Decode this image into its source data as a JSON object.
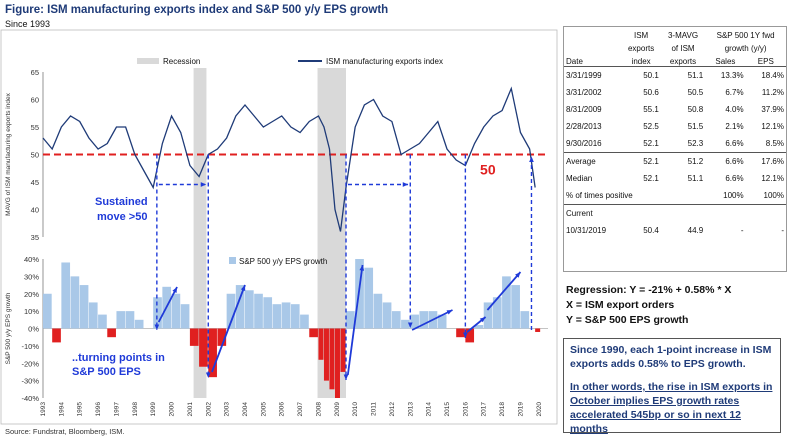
{
  "figure": {
    "title": "Figure: ISM manufacturing exports index and S&P 500 y/y EPS growth",
    "subtitle": "Since 1993",
    "source": "Source: Fundstrat, Bloomberg, ISM."
  },
  "colors": {
    "ism_line": "#1f3b78",
    "eps_pos": "#a9c8e8",
    "eps_neg": "#e02020",
    "recession": "#d9d9d9",
    "threshold": "#e02020",
    "annotation": "#1f3ad8"
  },
  "chart_data": [
    {
      "type": "line",
      "title": "",
      "legend": [
        "Recession",
        "ISM manufacturing exports index"
      ],
      "legend_position": "top",
      "ylabel": "MAVG of ISM manufacturing exports index",
      "ylim": [
        35,
        65
      ],
      "yticks": [
        35,
        40,
        45,
        50,
        55,
        60,
        65
      ],
      "threshold": {
        "value": 50,
        "label": "50"
      },
      "recessions": [
        [
          2001.2,
          2001.9
        ],
        [
          2007.95,
          2009.5
        ]
      ],
      "series": [
        {
          "name": "ISM manufacturing exports index",
          "x": [
            1993.0,
            1993.5,
            1994.0,
            1994.5,
            1995.0,
            1995.5,
            1996.0,
            1996.5,
            1997.0,
            1997.5,
            1998.0,
            1998.5,
            1999.0,
            1999.5,
            2000.0,
            2000.5,
            2001.0,
            2001.5,
            2002.0,
            2002.5,
            2003.0,
            2003.5,
            2004.0,
            2004.5,
            2005.0,
            2005.5,
            2006.0,
            2006.5,
            2007.0,
            2007.5,
            2008.0,
            2008.3,
            2008.6,
            2008.9,
            2009.2,
            2009.5,
            2010.0,
            2010.5,
            2011.0,
            2011.5,
            2012.0,
            2012.5,
            2013.0,
            2013.5,
            2014.0,
            2014.5,
            2015.0,
            2015.5,
            2016.0,
            2016.5,
            2017.0,
            2017.5,
            2018.0,
            2018.5,
            2019.0,
            2019.5,
            2019.8
          ],
          "values": [
            53,
            51,
            55,
            57,
            56,
            53,
            51,
            52,
            55,
            55,
            50,
            47,
            44,
            52,
            57,
            54,
            48,
            46,
            50,
            51,
            53,
            57,
            59,
            57,
            55,
            56,
            57,
            55,
            54,
            56,
            57,
            55,
            51,
            40,
            36,
            44,
            55,
            59,
            60,
            57,
            56,
            50,
            51,
            52,
            54,
            56,
            51,
            49,
            48,
            52,
            55,
            57,
            58,
            62,
            54,
            51,
            44
          ]
        }
      ],
      "annotations": [
        "Sustained move >50"
      ]
    },
    {
      "type": "bar",
      "title": "",
      "legend": [
        "S&P 500 y/y EPS growth"
      ],
      "legend_position": "top",
      "ylabel": "S&P 500 y/y EPS growth",
      "ylim": [
        -40,
        40
      ],
      "yticks": [
        "40%",
        "30%",
        "20%",
        "10%",
        "0%",
        "-10%",
        "-20%",
        "-30%",
        "-40%"
      ],
      "x_tick_labels": [
        "1993",
        "1994",
        "1995",
        "1996",
        "1997",
        "1998",
        "1999",
        "2000",
        "2001",
        "2002",
        "2003",
        "2004",
        "2005",
        "2006",
        "2007",
        "2008",
        "2009",
        "2010",
        "2011",
        "2012",
        "2013",
        "2014",
        "2015",
        "2016",
        "2017",
        "2018",
        "2019",
        "2020"
      ],
      "series": [
        {
          "name": "S&P 500 y/y EPS growth",
          "x": [
            1993.0,
            1993.5,
            1994.0,
            1994.5,
            1995.0,
            1995.5,
            1996.0,
            1996.5,
            1997.0,
            1997.5,
            1998.0,
            1998.5,
            1999.0,
            1999.5,
            2000.0,
            2000.5,
            2001.0,
            2001.5,
            2002.0,
            2002.5,
            2003.0,
            2003.5,
            2004.0,
            2004.5,
            2005.0,
            2005.5,
            2006.0,
            2006.5,
            2007.0,
            2007.5,
            2008.0,
            2008.3,
            2008.6,
            2008.9,
            2009.2,
            2009.5,
            2010.0,
            2010.5,
            2011.0,
            2011.5,
            2012.0,
            2012.5,
            2013.0,
            2013.5,
            2014.0,
            2014.5,
            2015.0,
            2015.5,
            2016.0,
            2016.5,
            2017.0,
            2017.5,
            2018.0,
            2018.5,
            2019.0,
            2019.5,
            2019.8
          ],
          "values": [
            20,
            -8,
            38,
            30,
            25,
            15,
            8,
            -5,
            10,
            10,
            5,
            0,
            18,
            24,
            20,
            14,
            -10,
            -22,
            -28,
            -10,
            20,
            25,
            22,
            20,
            18,
            14,
            15,
            14,
            8,
            -5,
            -18,
            -30,
            -35,
            -40,
            -25,
            10,
            40,
            35,
            20,
            15,
            10,
            5,
            8,
            10,
            10,
            8,
            0,
            -5,
            -8,
            2,
            15,
            18,
            30,
            25,
            10,
            0,
            -2
          ]
        }
      ],
      "annotations": [
        "..turning points in S&P 500 EPS"
      ]
    }
  ],
  "table": {
    "headers": [
      [
        "",
        "ISM",
        "3-MAVG",
        "S&P 500 1Y fwd",
        ""
      ],
      [
        "",
        "exports",
        "of ISM",
        "growth (y/y)",
        ""
      ],
      [
        "Date",
        "index",
        "exports",
        "Sales",
        "EPS"
      ]
    ],
    "rows": [
      [
        "3/31/1999",
        "50.1",
        "51.1",
        "13.3%",
        "18.4%"
      ],
      [
        "3/31/2002",
        "50.6",
        "50.5",
        "6.7%",
        "11.2%"
      ],
      [
        "8/31/2009",
        "55.1",
        "50.8",
        "4.0%",
        "37.9%"
      ],
      [
        "2/28/2013",
        "52.5",
        "51.5",
        "2.1%",
        "12.1%"
      ],
      [
        "9/30/2016",
        "52.1",
        "52.3",
        "6.6%",
        "8.5%"
      ]
    ],
    "summary": [
      [
        "Average",
        "52.1",
        "51.2",
        "6.6%",
        "17.6%"
      ],
      [
        "Median",
        "52.1",
        "51.1",
        "6.6%",
        "12.1%"
      ],
      [
        "% of times positive",
        "",
        "",
        "100%",
        "100%"
      ]
    ],
    "current_label": "Current",
    "current": [
      "10/31/2019",
      "50.4",
      "44.9",
      "-",
      "-"
    ]
  },
  "regression": {
    "line1": "Regression:   Y = -21% + 0.58% * X",
    "line2": "X = ISM export orders",
    "line3": "Y = S&P 500 EPS growth"
  },
  "note": {
    "para1": "Since 1990, each 1-point increase in ISM exports adds 0.58% to EPS growth.",
    "para2": "In other words, the rise in ISM exports in October implies EPS growth rates accelerated 545bp or so in next 12 months"
  }
}
